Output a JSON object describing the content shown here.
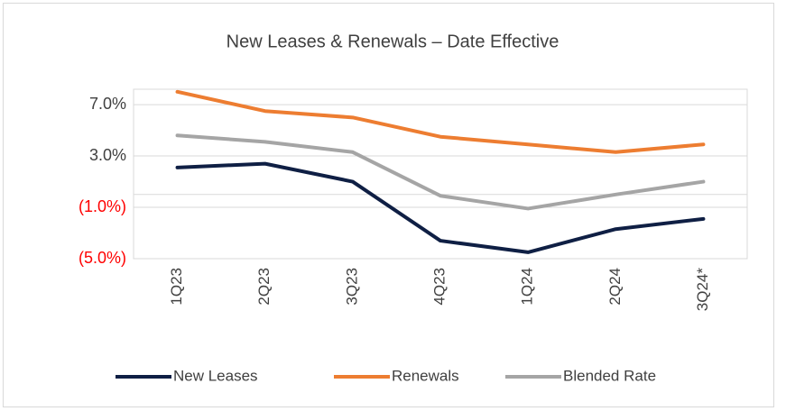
{
  "chart_data": {
    "type": "line",
    "title": "New Leases & Renewals – Date Effective",
    "categories": [
      "1Q23",
      "2Q23",
      "3Q23",
      "4Q23",
      "1Q24",
      "2Q24",
      "3Q24*"
    ],
    "series": [
      {
        "name": "New Leases",
        "color": "#0f1f44",
        "values": [
          2.1,
          2.4,
          1.0,
          -3.6,
          -4.5,
          -2.7,
          -1.9
        ]
      },
      {
        "name": "Renewals",
        "color": "#ed7d31",
        "values": [
          8.0,
          6.5,
          6.0,
          4.5,
          3.9,
          3.3,
          3.9
        ]
      },
      {
        "name": "Blended Rate",
        "color": "#a5a5a5",
        "values": [
          4.6,
          4.1,
          3.3,
          -0.1,
          -1.1,
          0.0,
          1.0
        ]
      }
    ],
    "ylim": [
      -5,
      8.2
    ],
    "yticks": [
      {
        "value": 7,
        "label": "7.0%"
      },
      {
        "value": 3,
        "label": "3.0%"
      },
      {
        "value": -1,
        "label": "(1.0%)"
      },
      {
        "value": -5,
        "label": "(5.0%)"
      }
    ],
    "negative_label_color": "#ff0000",
    "grid": true,
    "legend": "bottom"
  }
}
